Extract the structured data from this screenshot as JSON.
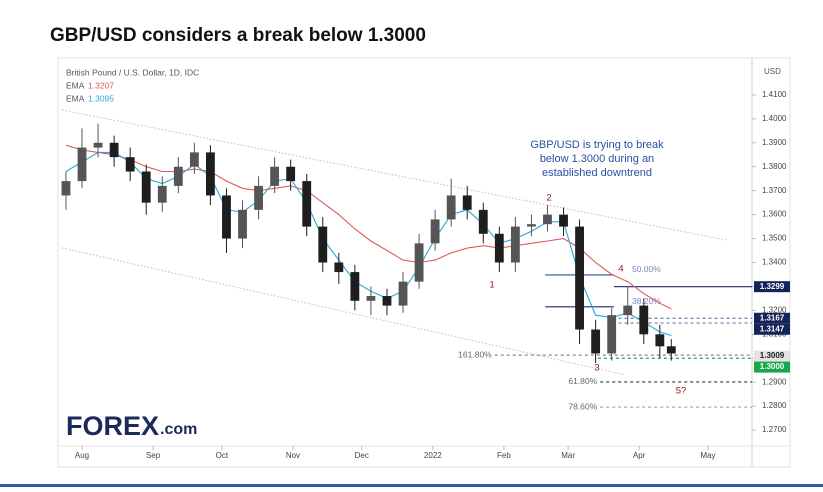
{
  "chart_data": {
    "type": "candlestick",
    "title": "GBP/USD considers a break below 1.3000",
    "subtitle": "British Pound / U.S. Dollar, 1D, IDC",
    "y_axis_label": "USD",
    "note": [
      "GBP/USD is trying to break",
      "below 1.3000 during an",
      "established downtrend"
    ],
    "logo": {
      "brand": "FOREX",
      "suffix": ".com"
    },
    "xlim": [
      -9.6,
      292.2
    ],
    "xticks": [
      {
        "value": 0,
        "label": "Aug"
      },
      {
        "value": 31,
        "label": "Sep"
      },
      {
        "value": 61,
        "label": "Oct"
      },
      {
        "value": 92,
        "label": "Nov"
      },
      {
        "value": 122,
        "label": "Dec"
      },
      {
        "value": 153,
        "label": "2022"
      },
      {
        "value": 184,
        "label": "Feb"
      },
      {
        "value": 212,
        "label": "Mar"
      },
      {
        "value": 243,
        "label": "Apr"
      },
      {
        "value": 273,
        "label": "May"
      }
    ],
    "ylim": [
      1.2575,
      1.4225
    ],
    "yticks": [
      {
        "value": 1.27,
        "label": "1.2700"
      },
      {
        "value": 1.28,
        "label": "1.2800"
      },
      {
        "value": 1.29,
        "label": "1.2900"
      },
      {
        "value": 1.3,
        "label": "1.3000"
      },
      {
        "value": 1.31,
        "label": "1.3100"
      },
      {
        "value": 1.32,
        "label": "1.3200"
      },
      {
        "value": 1.33,
        "label": "1.3300"
      },
      {
        "value": 1.34,
        "label": "1.3400"
      },
      {
        "value": 1.35,
        "label": "1.3500"
      },
      {
        "value": 1.36,
        "label": "1.3600"
      },
      {
        "value": 1.37,
        "label": "1.3700"
      },
      {
        "value": 1.38,
        "label": "1.3800"
      },
      {
        "value": 1.39,
        "label": "1.3900"
      },
      {
        "value": 1.4,
        "label": "1.4000"
      },
      {
        "value": 1.41,
        "label": "1.4100"
      }
    ],
    "up_color": "#555555",
    "down_color": "#1e1e1e",
    "x": [
      -7,
      0,
      7,
      14,
      21,
      28,
      35,
      42,
      49,
      56,
      63,
      70,
      77,
      84,
      91,
      98,
      105,
      112,
      119,
      126,
      133,
      140,
      147,
      154,
      161,
      168,
      175,
      182,
      189,
      196,
      203,
      210,
      217,
      224,
      231,
      238,
      245,
      252,
      257
    ],
    "open": [
      1.368,
      1.374,
      1.388,
      1.39,
      1.384,
      1.378,
      1.365,
      1.372,
      1.38,
      1.386,
      1.368,
      1.35,
      1.362,
      1.372,
      1.38,
      1.374,
      1.355,
      1.34,
      1.336,
      1.324,
      1.326,
      1.322,
      1.332,
      1.348,
      1.358,
      1.368,
      1.362,
      1.352,
      1.34,
      1.355,
      1.356,
      1.36,
      1.355,
      1.312,
      1.302,
      1.318,
      1.322,
      1.31,
      1.305
    ],
    "high": [
      1.378,
      1.396,
      1.398,
      1.393,
      1.388,
      1.381,
      1.376,
      1.384,
      1.39,
      1.389,
      1.371,
      1.366,
      1.376,
      1.384,
      1.383,
      1.377,
      1.359,
      1.344,
      1.339,
      1.33,
      1.329,
      1.336,
      1.352,
      1.362,
      1.375,
      1.372,
      1.365,
      1.355,
      1.359,
      1.36,
      1.364,
      1.363,
      1.358,
      1.316,
      1.321,
      1.33,
      1.325,
      1.314,
      1.308
    ],
    "low": [
      1.362,
      1.371,
      1.384,
      1.38,
      1.374,
      1.36,
      1.361,
      1.369,
      1.377,
      1.364,
      1.344,
      1.346,
      1.358,
      1.369,
      1.37,
      1.351,
      1.336,
      1.331,
      1.32,
      1.318,
      1.318,
      1.319,
      1.329,
      1.345,
      1.355,
      1.358,
      1.348,
      1.336,
      1.336,
      1.351,
      1.353,
      1.351,
      1.306,
      1.298,
      1.299,
      1.314,
      1.306,
      1.3,
      1.299
    ],
    "close": [
      1.374,
      1.388,
      1.39,
      1.384,
      1.378,
      1.365,
      1.372,
      1.38,
      1.386,
      1.368,
      1.35,
      1.362,
      1.372,
      1.38,
      1.374,
      1.355,
      1.34,
      1.336,
      1.324,
      1.326,
      1.322,
      1.332,
      1.348,
      1.358,
      1.368,
      1.362,
      1.352,
      1.34,
      1.355,
      1.356,
      1.36,
      1.355,
      1.312,
      1.302,
      1.318,
      1.322,
      1.31,
      1.305,
      1.302
    ],
    "series": [
      {
        "name": "EMA",
        "legend_value": "1.3207",
        "color": "#e05a5a",
        "values": [
          1.389,
          1.387,
          1.386,
          1.385,
          1.383,
          1.38,
          1.378,
          1.378,
          1.379,
          1.378,
          1.374,
          1.371,
          1.37,
          1.371,
          1.372,
          1.37,
          1.365,
          1.36,
          1.354,
          1.349,
          1.345,
          1.341,
          1.34,
          1.341,
          1.344,
          1.346,
          1.347,
          1.346,
          1.347,
          1.348,
          1.349,
          1.35,
          1.346,
          1.34,
          1.335,
          1.332,
          1.327,
          1.323,
          1.3207
        ]
      },
      {
        "name": "EMA",
        "legend_value": "1.3095",
        "color": "#2aa7d8",
        "values": [
          1.378,
          1.382,
          1.386,
          1.386,
          1.382,
          1.375,
          1.373,
          1.376,
          1.381,
          1.376,
          1.362,
          1.361,
          1.366,
          1.374,
          1.375,
          1.365,
          1.35,
          1.341,
          1.332,
          1.328,
          1.325,
          1.328,
          1.338,
          1.35,
          1.36,
          1.362,
          1.356,
          1.348,
          1.35,
          1.353,
          1.357,
          1.357,
          1.334,
          1.318,
          1.317,
          1.319,
          1.315,
          1.311,
          1.3095
        ]
      }
    ],
    "channel": [
      {
        "x": [
          -8.7,
          281
        ],
        "y": [
          1.4037,
          1.3494
        ]
      },
      {
        "x": [
          -8.7,
          237
        ],
        "y": [
          1.3461,
          1.293
        ]
      }
    ],
    "levels": [
      {
        "value": 1.3348,
        "x": [
          202,
          232
        ],
        "color": "#2b4fa0",
        "dash": false,
        "label": "50.00%"
      },
      {
        "value": 1.3215,
        "x": [
          202,
          232
        ],
        "color": "#1b2a6b",
        "dash": false,
        "label": "38.20%"
      },
      {
        "value": 1.3299,
        "x": [
          232,
          292.2
        ],
        "color": "#1b2a6b",
        "dash": false
      },
      {
        "value": 1.3167,
        "x": [
          234,
          292.2
        ],
        "color": "#6a7bb0",
        "dash": true
      },
      {
        "value": 1.3147,
        "x": [
          234,
          292.2
        ],
        "color": "#6a7bb0",
        "dash": true
      },
      {
        "value": 1.3013,
        "x": [
          180,
          292.2
        ],
        "color": "#888888",
        "dash": true,
        "label": "161.80%"
      },
      {
        "value": 1.3,
        "x": [
          225,
          292.2
        ],
        "color": "#1aa64a",
        "dash": true
      },
      {
        "value": 1.2901,
        "x": [
          226,
          292.2
        ],
        "color": "#333333",
        "dash": true,
        "label": "61.80%"
      },
      {
        "value": 1.2796,
        "x": [
          226,
          292.2
        ],
        "color": "#aaaaaa",
        "dash": true,
        "label": "78.60%"
      }
    ],
    "price_tags": [
      {
        "value": 1.3299,
        "label": "1.3299",
        "color": "#14245a",
        "text_color": "#ffffff"
      },
      {
        "value": 1.3167,
        "label": "1.3167",
        "color": "#14245a",
        "text_color": "#ffffff"
      },
      {
        "value": 1.3147,
        "label": "1.3147",
        "color": "#14245a",
        "text_color": "#ffffff"
      },
      {
        "value": 1.3009,
        "label": "1.3009",
        "color": "#e3e3e3",
        "text_color": "#222222"
      },
      {
        "value": 1.3,
        "label": "1.3000",
        "color": "#1aa64a",
        "text_color": "#ffffff"
      }
    ],
    "waves": [
      "1",
      "2",
      "3",
      "4",
      "5?"
    ]
  }
}
